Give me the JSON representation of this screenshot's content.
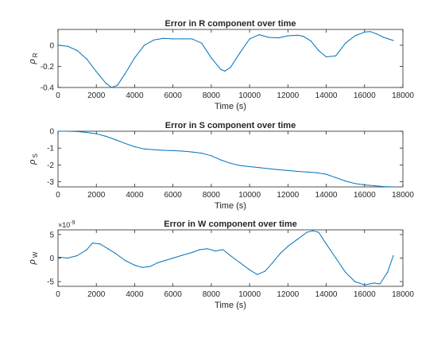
{
  "chart_data": [
    {
      "type": "line",
      "title": "Error in R component over time",
      "xlabel": "Time (s)",
      "ylabel": "ρ",
      "ylabel_subscript": "R",
      "xlim": [
        0,
        18000
      ],
      "ylim": [
        -0.4,
        0.15
      ],
      "xticks": [
        0,
        2000,
        4000,
        6000,
        8000,
        10000,
        12000,
        14000,
        16000,
        18000
      ],
      "yticks": [
        -0.4,
        -0.2,
        0
      ],
      "ytick_labels": [
        "-0.4",
        "-0.2",
        "0"
      ],
      "line_color": "#0072BD",
      "grid": false,
      "series": [
        {
          "x": [
            0,
            500,
            1000,
            1500,
            2000,
            2500,
            2800,
            3100,
            3500,
            4000,
            4500,
            5000,
            5500,
            6000,
            6500,
            7000,
            7500,
            8000,
            8500,
            8700,
            9000,
            9500,
            10000,
            10500,
            11000,
            11500,
            12000,
            12500,
            12800,
            13200,
            13600,
            14000,
            14500,
            15000,
            15500,
            16000,
            16300,
            16600,
            17000,
            17500
          ],
          "y": [
            0.0,
            -0.01,
            -0.05,
            -0.13,
            -0.25,
            -0.36,
            -0.4,
            -0.38,
            -0.27,
            -0.12,
            0.0,
            0.05,
            0.065,
            0.06,
            0.06,
            0.06,
            0.02,
            -0.12,
            -0.23,
            -0.245,
            -0.21,
            -0.07,
            0.06,
            0.1,
            0.075,
            0.07,
            0.09,
            0.095,
            0.085,
            0.04,
            -0.05,
            -0.11,
            -0.1,
            0.02,
            0.09,
            0.125,
            0.13,
            0.11,
            0.075,
            0.045
          ]
        }
      ]
    },
    {
      "type": "line",
      "title": "Error in S component over time",
      "xlabel": "Time (s)",
      "ylabel": "ρ",
      "ylabel_subscript": "S",
      "xlim": [
        0,
        18000
      ],
      "ylim": [
        -3.3,
        0
      ],
      "xticks": [
        0,
        2000,
        4000,
        6000,
        8000,
        10000,
        12000,
        14000,
        16000,
        18000
      ],
      "yticks": [
        -3,
        -2,
        -1,
        0
      ],
      "ytick_labels": [
        "-3",
        "-2",
        "-1",
        "0"
      ],
      "line_color": "#0072BD",
      "grid": false,
      "series": [
        {
          "x": [
            0,
            500,
            1000,
            1500,
            2000,
            2500,
            3000,
            3500,
            4000,
            4500,
            5000,
            5500,
            6000,
            6500,
            7000,
            7500,
            8000,
            8500,
            9000,
            9500,
            10000,
            10500,
            11000,
            11500,
            12000,
            12500,
            13000,
            13500,
            14000,
            14500,
            15000,
            15500,
            16000,
            16500,
            17000,
            17500
          ],
          "y": [
            0.0,
            0.0,
            -0.02,
            -0.07,
            -0.15,
            -0.3,
            -0.5,
            -0.72,
            -0.92,
            -1.05,
            -1.1,
            -1.13,
            -1.15,
            -1.18,
            -1.23,
            -1.3,
            -1.45,
            -1.7,
            -1.9,
            -2.03,
            -2.1,
            -2.16,
            -2.22,
            -2.28,
            -2.33,
            -2.38,
            -2.42,
            -2.46,
            -2.55,
            -2.75,
            -2.95,
            -3.1,
            -3.18,
            -3.23,
            -3.28,
            -3.3
          ]
        }
      ]
    },
    {
      "type": "line",
      "title": "Error in W component over time",
      "xlabel": "Time (s)",
      "ylabel": "ρ",
      "ylabel_subscript": "W",
      "y_multiplier_label": "×10",
      "y_multiplier_exponent": "-9",
      "xlim": [
        0,
        18000
      ],
      "ylim": [
        -6,
        6
      ],
      "xticks": [
        0,
        2000,
        4000,
        6000,
        8000,
        10000,
        12000,
        14000,
        16000,
        18000
      ],
      "yticks": [
        -5,
        0,
        5
      ],
      "ytick_labels": [
        "-5",
        "0",
        "5"
      ],
      "line_color": "#0072BD",
      "grid": false,
      "series": [
        {
          "x": [
            0,
            500,
            1000,
            1500,
            1800,
            2200,
            2600,
            3000,
            3500,
            4000,
            4400,
            4800,
            5200,
            5600,
            6000,
            6500,
            7000,
            7400,
            7800,
            8200,
            8600,
            9000,
            9500,
            10000,
            10400,
            10800,
            11200,
            11600,
            12000,
            12500,
            13000,
            13300,
            13600,
            14000,
            14500,
            15000,
            15500,
            16000,
            16500,
            16800,
            17200,
            17500
          ],
          "y": [
            0.2,
            0.0,
            0.5,
            1.8,
            3.2,
            3.0,
            2.0,
            1.0,
            -0.5,
            -1.5,
            -2.0,
            -1.8,
            -1.0,
            -0.5,
            0.0,
            0.6,
            1.2,
            1.8,
            2.0,
            1.5,
            1.8,
            0.5,
            -1.0,
            -2.5,
            -3.5,
            -2.8,
            -1.0,
            1.0,
            2.5,
            4.0,
            5.5,
            5.8,
            5.5,
            3.0,
            0.0,
            -3.0,
            -5.0,
            -5.7,
            -5.3,
            -5.5,
            -3.0,
            0.5
          ]
        }
      ]
    }
  ]
}
